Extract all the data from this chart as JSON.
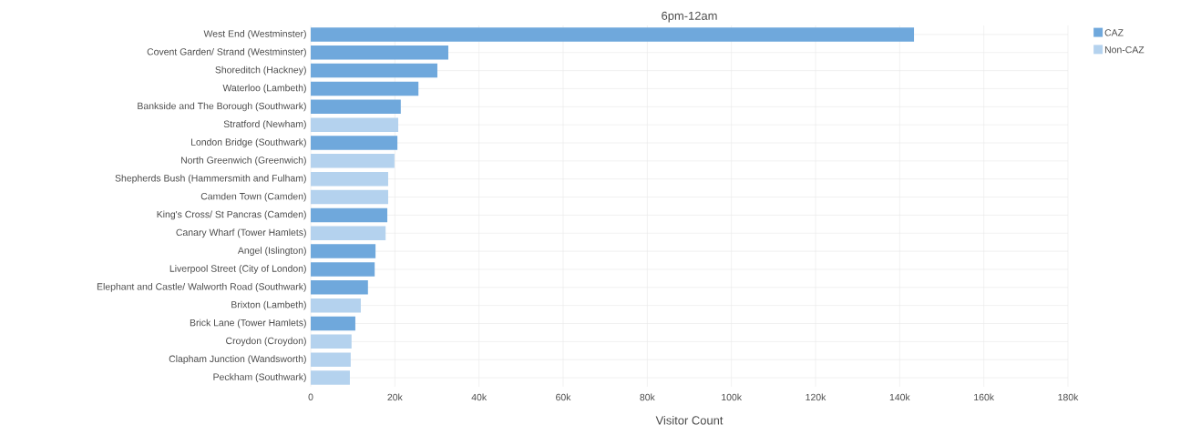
{
  "chart_data": {
    "type": "bar",
    "orientation": "horizontal",
    "title": "6pm-12am",
    "xlabel": "Visitor Count",
    "categories": [
      "West End (Westminster)",
      "Covent Garden/ Strand (Westminster)",
      "Shoreditch (Hackney)",
      "Waterloo (Lambeth)",
      "Bankside and The Borough (Southwark)",
      "Stratford (Newham)",
      "London Bridge (Southwark)",
      "North Greenwich (Greenwich)",
      "Shepherds Bush (Hammersmith and Fulham)",
      "Camden Town (Camden)",
      "King's Cross/ St Pancras (Camden)",
      "Canary Wharf (Tower Hamlets)",
      "Angel (Islington)",
      "Liverpool Street (City of London)",
      "Elephant and Castle/ Walworth Road (Southwark)",
      "Brixton (Lambeth)",
      "Brick Lane (Tower Hamlets)",
      "Croydon (Croydon)",
      "Clapham Junction (Wandsworth)",
      "Peckham (Southwark)"
    ],
    "series": [
      {
        "name": "CAZ",
        "color": "#6fa8dc",
        "values": [
          143.4,
          32.7,
          30.1,
          25.6,
          21.4,
          null,
          20.6,
          null,
          null,
          null,
          18.2,
          null,
          15.4,
          15.2,
          13.6,
          null,
          10.6,
          null,
          null,
          null
        ]
      },
      {
        "name": "Non-CAZ",
        "color": "#b4d2ee",
        "values": [
          null,
          null,
          null,
          null,
          null,
          20.8,
          null,
          19.9,
          18.4,
          18.4,
          null,
          17.8,
          null,
          null,
          null,
          11.9,
          null,
          9.7,
          9.5,
          9.3
        ]
      }
    ],
    "xlim": [
      0,
      180
    ],
    "xticks": [
      0,
      {
        "value": 20,
        "label": "20k"
      },
      {
        "value": 40,
        "label": "40k"
      },
      {
        "value": 60,
        "label": "60k"
      },
      {
        "value": 80,
        "label": "80k"
      },
      {
        "value": 100,
        "label": "100k"
      },
      {
        "value": 120,
        "label": "120k"
      },
      {
        "value": 140,
        "label": "140k"
      },
      {
        "value": 160,
        "label": "160k"
      },
      {
        "value": 180,
        "label": "180k"
      }
    ],
    "grid": true,
    "legend": "top right"
  }
}
